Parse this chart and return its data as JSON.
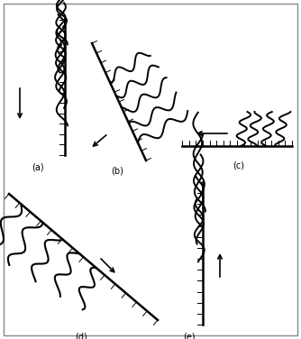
{
  "background_color": "#ffffff",
  "border_color": "#888888",
  "text_color": "#000000",
  "label_fontsize": 7,
  "panels": [
    "(a)",
    "(b)",
    "(c)",
    "(d)",
    "(e)"
  ]
}
